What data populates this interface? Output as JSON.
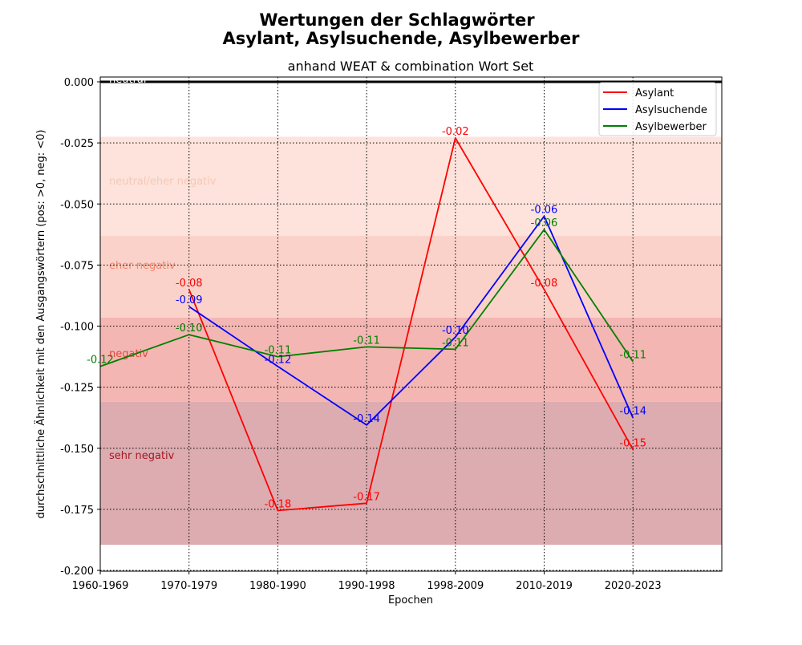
{
  "chart_data": {
    "type": "line",
    "title_line1": "Wertungen der Schlagwörter",
    "title_line2": "Asylant, Asylsuchende, Asylbewerber",
    "subtitle": "anhand WEAT & combination Wort Set",
    "xlabel": "Epochen",
    "ylabel": "durchschnittliche Ähnlichkeit mit den Ausgangswörtern (pos: >0, neg: <0)",
    "categories": [
      "1960-1969",
      "1970-1979",
      "1980-1990",
      "1990-1998",
      "1998-2009",
      "2010-2019",
      "2020-2023"
    ],
    "ylim": [
      -0.2,
      0.0
    ],
    "yticks": [
      "0.000",
      "-0.025",
      "-0.050",
      "-0.075",
      "-0.100",
      "-0.125",
      "-0.150",
      "-0.175",
      "-0.200"
    ],
    "grid": true,
    "legend_position": "top-right",
    "zero_line_label": "neutral",
    "bands": [
      {
        "label": "neutral/eher negativ",
        "from": -0.0225,
        "to": -0.063,
        "color": "#fde3db",
        "label_color": "#f6c8b6"
      },
      {
        "label": "eher negativ",
        "from": -0.063,
        "to": -0.0965,
        "color": "#fbd2c9",
        "label_color": "#f08770"
      },
      {
        "label": "negativ",
        "from": -0.0965,
        "to": -0.131,
        "color": "#f3b6b3",
        "label_color": "#e04a3e"
      },
      {
        "label": "sehr negativ",
        "from": -0.131,
        "to": -0.1895,
        "color": "#dcacb0",
        "label_color": "#a51722"
      }
    ],
    "series": [
      {
        "name": "Asylant",
        "color": "#ff0000",
        "values": [
          null,
          -0.085,
          -0.1755,
          -0.1725,
          -0.023,
          -0.085,
          -0.1505
        ],
        "labels": [
          null,
          "-0.08",
          "-0.18",
          "-0.17",
          "-0.02",
          "-0.08",
          "-0.15"
        ]
      },
      {
        "name": "Asylsuchende",
        "color": "#0000ff",
        "values": [
          null,
          -0.092,
          -0.1165,
          -0.1405,
          -0.1045,
          -0.055,
          -0.1375
        ],
        "labels": [
          null,
          "-0.09",
          "-0.12",
          "-0.14",
          "-0.10",
          "-0.06",
          "-0.14"
        ]
      },
      {
        "name": "Asylbewerber",
        "color": "#008000",
        "values": [
          -0.1165,
          -0.1035,
          -0.1125,
          -0.1085,
          -0.1095,
          -0.0605,
          -0.1145
        ],
        "labels": [
          "-0.12",
          "-0.10",
          "-0.11",
          "-0.11",
          "-0.11",
          "-0.06",
          "-0.11"
        ]
      }
    ]
  }
}
